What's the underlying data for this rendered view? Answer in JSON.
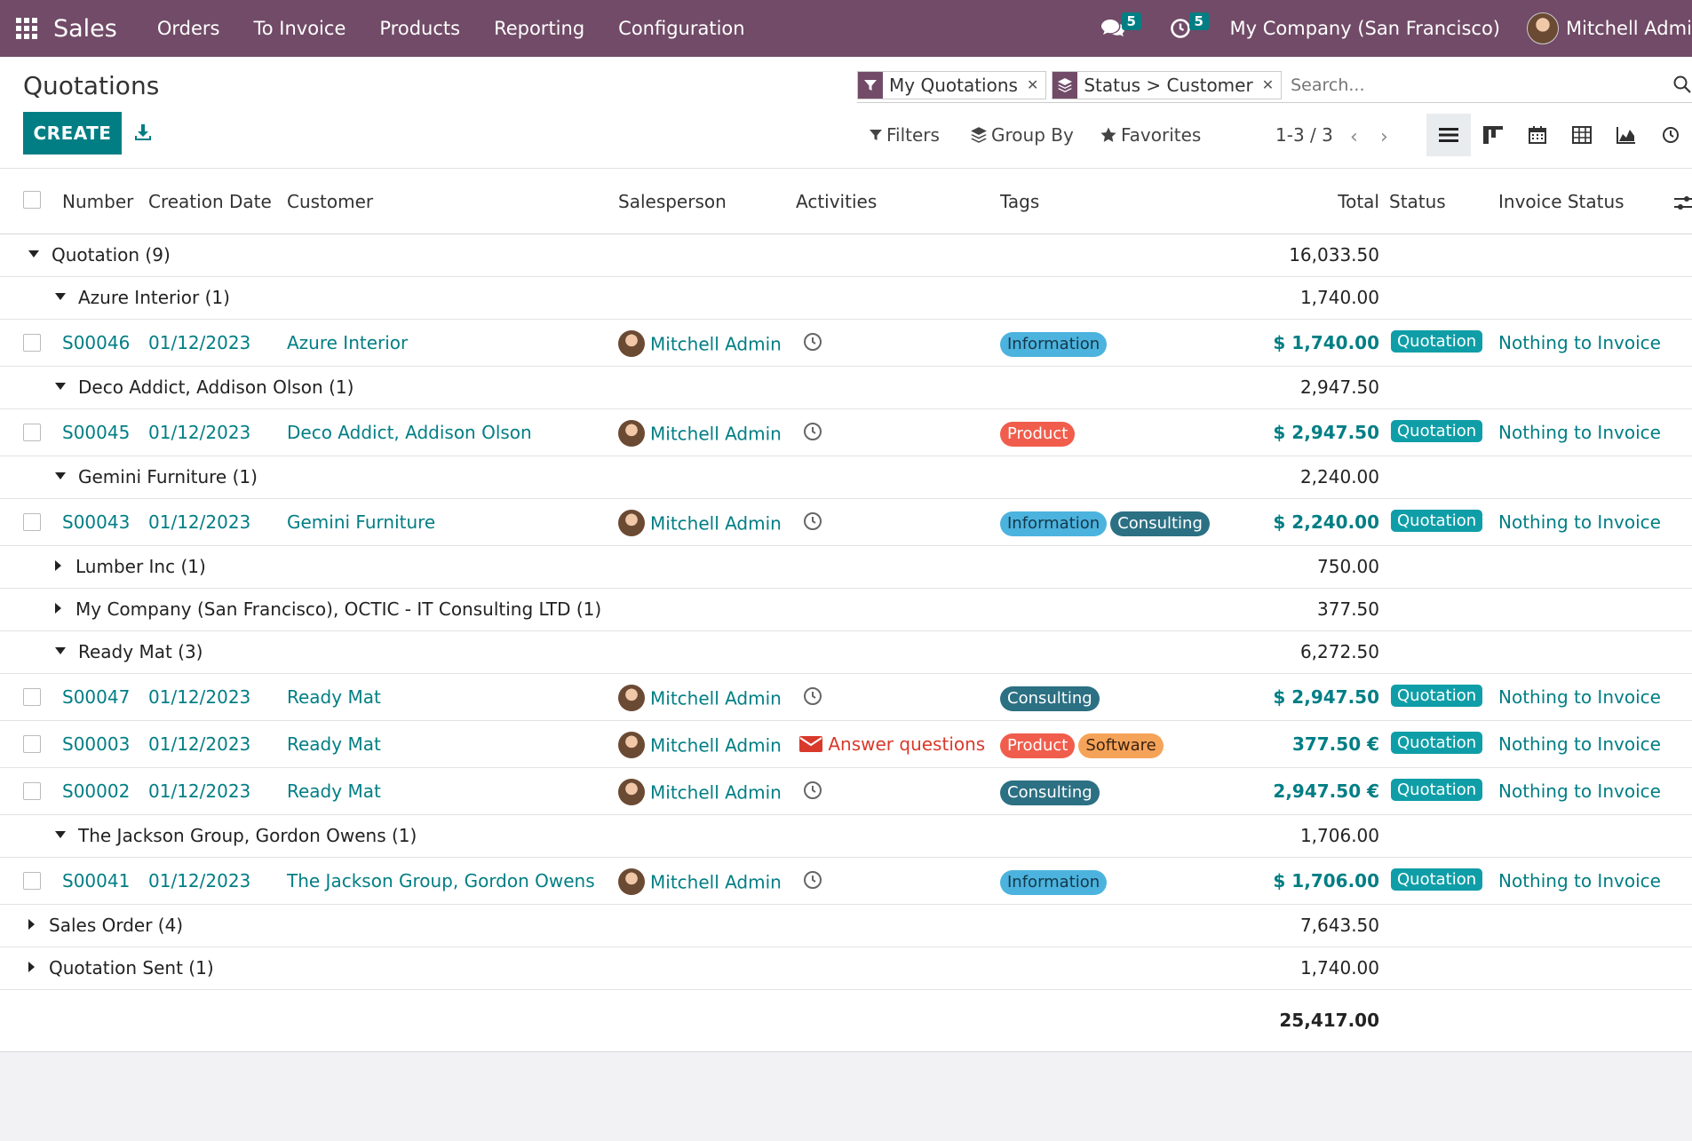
{
  "navbar": {
    "app_name": "Sales",
    "menu": [
      "Orders",
      "To Invoice",
      "Products",
      "Reporting",
      "Configuration"
    ],
    "messages_count": "5",
    "activities_count": "5",
    "company": "My Company (San Francisco)",
    "user": "Mitchell Admin",
    "bg_color": "#714b67"
  },
  "control": {
    "title": "Quotations",
    "create_label": "CREATE",
    "facets": [
      {
        "icon": "filter-icon",
        "label": "My Quotations"
      },
      {
        "icon": "layers-icon",
        "label": "Status > Customer"
      }
    ],
    "search_placeholder": "Search...",
    "filters_label": "Filters",
    "groupby_label": "Group By",
    "favorites_label": "Favorites",
    "pager": "1-3 / 3",
    "views": [
      "list-view-icon",
      "kanban-view-icon",
      "calendar-view-icon",
      "pivot-view-icon",
      "graph-view-icon",
      "activity-view-icon"
    ]
  },
  "table": {
    "headers": {
      "number": "Number",
      "creation_date": "Creation Date",
      "customer": "Customer",
      "salesperson": "Salesperson",
      "activities": "Activities",
      "tags": "Tags",
      "total": "Total",
      "status": "Status",
      "invoice_status": "Invoice Status"
    },
    "groups": {
      "quotation": {
        "label": "Quotation (9)",
        "total": "16,033.50"
      },
      "azure": {
        "label": "Azure Interior (1)",
        "total": "1,740.00"
      },
      "deco": {
        "label": "Deco Addict, Addison Olson (1)",
        "total": "2,947.50"
      },
      "gemini": {
        "label": "Gemini Furniture (1)",
        "total": "2,240.00"
      },
      "lumber": {
        "label": "Lumber Inc (1)",
        "total": "750.00"
      },
      "mycompany": {
        "label": "My Company (San Francisco), OCTIC - IT Consulting LTD (1)",
        "total": "377.50"
      },
      "readymat": {
        "label": "Ready Mat (3)",
        "total": "6,272.50"
      },
      "jackson": {
        "label": "The Jackson Group, Gordon Owens (1)",
        "total": "1,706.00"
      },
      "salesorder": {
        "label": "Sales Order (4)",
        "total": "7,643.50"
      },
      "quotsent": {
        "label": "Quotation Sent (1)",
        "total": "1,740.00"
      }
    },
    "records": {
      "s46": {
        "number": "S00046",
        "date": "01/12/2023",
        "customer": "Azure Interior",
        "salesperson": "Mitchell Admin",
        "tags": [
          "Information"
        ],
        "total": "$ 1,740.00",
        "status": "Quotation",
        "invoice_status": "Nothing to Invoice"
      },
      "s45": {
        "number": "S00045",
        "date": "01/12/2023",
        "customer": "Deco Addict, Addison Olson",
        "salesperson": "Mitchell Admin",
        "tags": [
          "Product"
        ],
        "total": "$ 2,947.50",
        "status": "Quotation",
        "invoice_status": "Nothing to Invoice"
      },
      "s43": {
        "number": "S00043",
        "date": "01/12/2023",
        "customer": "Gemini Furniture",
        "salesperson": "Mitchell Admin",
        "tags": [
          "Information",
          "Consulting"
        ],
        "total": "$ 2,240.00",
        "status": "Quotation",
        "invoice_status": "Nothing to Invoice"
      },
      "s47": {
        "number": "S00047",
        "date": "01/12/2023",
        "customer": "Ready Mat",
        "salesperson": "Mitchell Admin",
        "tags": [
          "Consulting"
        ],
        "total": "$ 2,947.50",
        "status": "Quotation",
        "invoice_status": "Nothing to Invoice"
      },
      "s03": {
        "number": "S00003",
        "date": "01/12/2023",
        "customer": "Ready Mat",
        "salesperson": "Mitchell Admin",
        "activity": "Answer questions",
        "tags": [
          "Product",
          "Software"
        ],
        "total": "377.50 €",
        "status": "Quotation",
        "invoice_status": "Nothing to Invoice"
      },
      "s02": {
        "number": "S00002",
        "date": "01/12/2023",
        "customer": "Ready Mat",
        "salesperson": "Mitchell Admin",
        "tags": [
          "Consulting"
        ],
        "total": "2,947.50 €",
        "status": "Quotation",
        "invoice_status": "Nothing to Invoice"
      },
      "s41": {
        "number": "S00041",
        "date": "01/12/2023",
        "customer": "The Jackson Group, Gordon Owens",
        "salesperson": "Mitchell Admin",
        "tags": [
          "Information"
        ],
        "total": "$ 1,706.00",
        "status": "Quotation",
        "invoice_status": "Nothing to Invoice"
      }
    },
    "grand_total": "25,417.00"
  }
}
